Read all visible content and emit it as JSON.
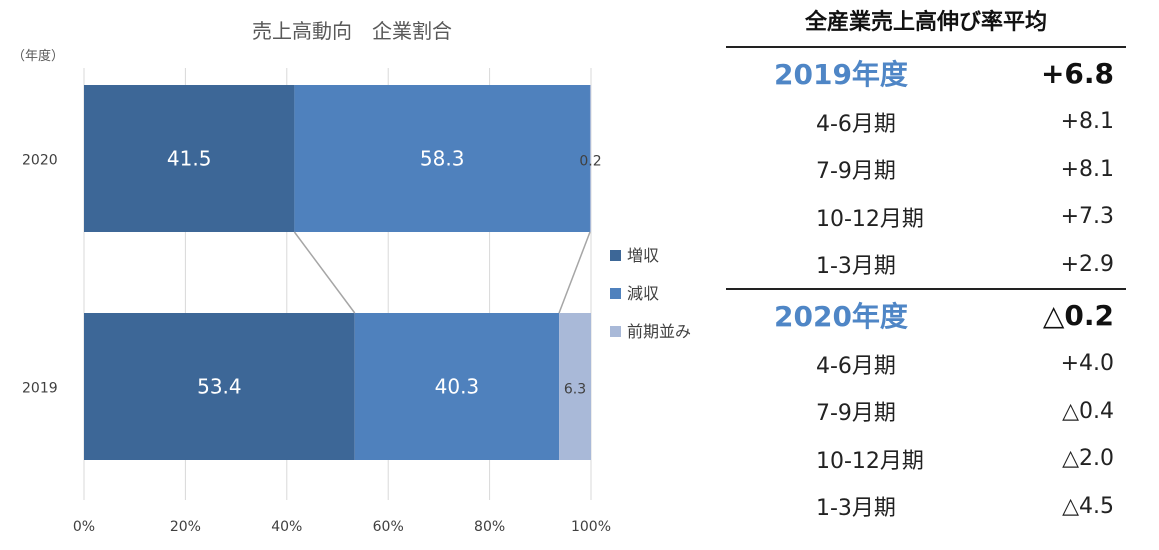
{
  "chart_data": {
    "type": "bar",
    "orientation": "horizontal",
    "stacked": true,
    "title": "売上高動向　企業割合",
    "ylabel": "（年度）",
    "xlabel": "",
    "categories": [
      "2020",
      "2019"
    ],
    "series": [
      {
        "name": "増収",
        "color": "#3d6797",
        "values": [
          41.5,
          53.4
        ]
      },
      {
        "name": "減収",
        "color": "#4f81bd",
        "values": [
          58.3,
          40.3
        ]
      },
      {
        "name": "前期並み",
        "color": "#a9b9d8",
        "values": [
          0.2,
          6.3
        ]
      }
    ],
    "data_labels": [
      [
        "41.5",
        "58.3",
        "0.2"
      ],
      [
        "53.4",
        "40.3",
        "6.3"
      ]
    ],
    "xlim": [
      0,
      100
    ],
    "xticks": [
      "0%",
      "20%",
      "40%",
      "60%",
      "80%",
      "100%"
    ],
    "grid": true,
    "legend": "right"
  },
  "table": {
    "title": "全産業売上高伸び率平均",
    "years": [
      {
        "label": "2019年度",
        "value": "+6.8",
        "quarters": [
          {
            "label": "4-6月期",
            "value": "+8.1"
          },
          {
            "label": "7-9月期",
            "value": "+8.1"
          },
          {
            "label": "10-12月期",
            "value": "+7.3"
          },
          {
            "label": "1-3月期",
            "value": "+2.9"
          }
        ]
      },
      {
        "label": "2020年度",
        "value": "△0.2",
        "quarters": [
          {
            "label": "4-6月期",
            "value": "+4.0"
          },
          {
            "label": "7-9月期",
            "value": "△0.4"
          },
          {
            "label": "10-12月期",
            "value": "△2.0"
          },
          {
            "label": "1-3月期",
            "value": "△4.5"
          }
        ]
      }
    ]
  }
}
